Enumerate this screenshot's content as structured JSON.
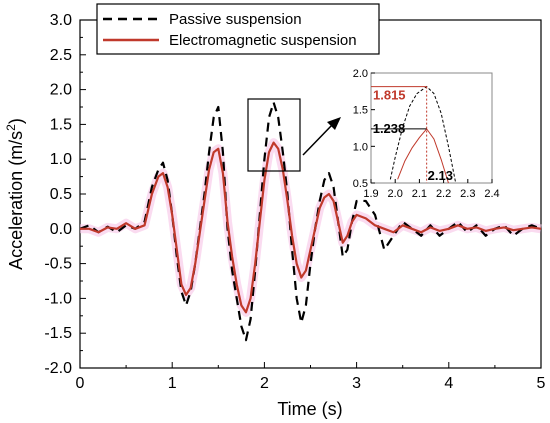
{
  "chart_data": {
    "type": "line",
    "xlabel": "Time (s)",
    "ylabel_main": "Acceleration (m/s",
    "ylabel_sup": "2",
    "ylabel_close": ")",
    "xlim": [
      0,
      5
    ],
    "ylim": [
      -2.0,
      3.0
    ],
    "x_ticks": [
      0,
      1,
      2,
      3,
      4,
      5
    ],
    "x_tick_labels": [
      "0",
      "1",
      "2",
      "3",
      "4",
      "5"
    ],
    "y_ticks": [
      -2.0,
      -1.5,
      -1.0,
      -0.5,
      0.0,
      0.5,
      1.0,
      1.5,
      2.0,
      2.5,
      3.0
    ],
    "y_tick_labels": [
      "-2.0",
      "-1.5",
      "-1.0",
      "-0.5",
      "0.0",
      "0.5",
      "1.0",
      "1.5",
      "2.0",
      "2.5",
      "3.0"
    ],
    "legend_position": "top",
    "series": [
      {
        "name": "Passive suspension",
        "color": "#000000",
        "style": "dashed",
        "x": [
          0.0,
          0.1,
          0.2,
          0.3,
          0.4,
          0.5,
          0.6,
          0.7,
          0.78,
          0.85,
          0.9,
          0.95,
          1.0,
          1.05,
          1.1,
          1.15,
          1.2,
          1.25,
          1.3,
          1.35,
          1.4,
          1.45,
          1.5,
          1.55,
          1.6,
          1.65,
          1.7,
          1.75,
          1.8,
          1.85,
          1.9,
          1.95,
          2.0,
          2.05,
          2.1,
          2.15,
          2.2,
          2.25,
          2.3,
          2.35,
          2.4,
          2.45,
          2.5,
          2.55,
          2.6,
          2.65,
          2.7,
          2.75,
          2.8,
          2.85,
          2.9,
          2.95,
          3.0,
          3.1,
          3.2,
          3.3,
          3.4,
          3.5,
          3.6,
          3.7,
          3.8,
          3.9,
          4.0,
          4.1,
          4.2,
          4.3,
          4.4,
          4.5,
          4.6,
          4.7,
          4.8,
          4.9,
          5.0
        ],
        "y": [
          0.0,
          0.05,
          -0.05,
          0.03,
          -0.05,
          0.05,
          0.0,
          0.1,
          0.6,
          0.85,
          0.95,
          0.7,
          0.2,
          -0.4,
          -0.9,
          -1.1,
          -0.9,
          -0.5,
          0.0,
          0.5,
          1.1,
          1.6,
          1.75,
          1.1,
          0.0,
          -0.6,
          -1.0,
          -1.4,
          -1.6,
          -1.3,
          -0.6,
          0.2,
          1.0,
          1.6,
          1.815,
          1.6,
          1.1,
          0.5,
          -0.3,
          -1.0,
          -1.35,
          -1.1,
          -0.5,
          0.0,
          0.4,
          0.7,
          0.8,
          0.6,
          0.1,
          -0.4,
          -0.3,
          0.1,
          0.4,
          0.4,
          0.2,
          -0.3,
          -0.1,
          0.1,
          0.0,
          -0.1,
          0.05,
          -0.1,
          0.0,
          0.1,
          -0.05,
          0.05,
          -0.1,
          0.0,
          0.05,
          -0.1,
          0.0,
          0.05,
          0.0
        ]
      },
      {
        "name": "Electromagnetic suspension",
        "color": "#c0392b",
        "style": "solid",
        "x": [
          0.0,
          0.1,
          0.2,
          0.3,
          0.4,
          0.5,
          0.6,
          0.7,
          0.78,
          0.85,
          0.9,
          0.95,
          1.0,
          1.05,
          1.1,
          1.15,
          1.2,
          1.25,
          1.3,
          1.35,
          1.4,
          1.45,
          1.5,
          1.55,
          1.6,
          1.65,
          1.7,
          1.75,
          1.8,
          1.85,
          1.9,
          1.95,
          2.0,
          2.05,
          2.1,
          2.15,
          2.2,
          2.25,
          2.3,
          2.35,
          2.4,
          2.45,
          2.5,
          2.55,
          2.6,
          2.65,
          2.7,
          2.75,
          2.8,
          2.85,
          2.9,
          2.95,
          3.0,
          3.1,
          3.2,
          3.3,
          3.4,
          3.5,
          3.6,
          3.7,
          3.8,
          3.9,
          4.0,
          4.1,
          4.2,
          4.3,
          4.4,
          4.5,
          4.6,
          4.7,
          4.8,
          4.9,
          5.0
        ],
        "y": [
          0.0,
          0.0,
          -0.05,
          0.02,
          0.0,
          0.08,
          0.0,
          0.05,
          0.5,
          0.75,
          0.8,
          0.6,
          0.2,
          -0.3,
          -0.8,
          -0.95,
          -0.85,
          -0.5,
          -0.05,
          0.4,
          0.85,
          1.1,
          1.15,
          0.8,
          0.1,
          -0.4,
          -0.8,
          -1.1,
          -1.2,
          -1.0,
          -0.5,
          0.1,
          0.7,
          1.1,
          1.238,
          1.15,
          0.85,
          0.4,
          -0.1,
          -0.5,
          -0.7,
          -0.6,
          -0.3,
          0.0,
          0.3,
          0.45,
          0.5,
          0.4,
          0.1,
          -0.2,
          -0.1,
          0.1,
          0.2,
          0.15,
          0.05,
          0.0,
          -0.05,
          0.05,
          0.0,
          -0.05,
          0.02,
          -0.03,
          0.0,
          0.05,
          0.0,
          0.02,
          -0.03,
          0.0,
          0.02,
          -0.02,
          0.0,
          0.02,
          0.0
        ]
      }
    ],
    "inset": {
      "xlim": [
        1.9,
        2.4
      ],
      "ylim": [
        0.5,
        2.0
      ],
      "x_ticks": [
        1.9,
        2.0,
        2.1,
        2.2,
        2.3,
        2.4
      ],
      "x_tick_labels": [
        "1.9",
        "2.0",
        "2.1",
        "2.2",
        "2.3",
        "2.4"
      ],
      "y_ticks": [
        0.5,
        1.0,
        1.5,
        2.0
      ],
      "y_tick_labels": [
        "0.5",
        "1.0",
        "1.5",
        "2.0"
      ],
      "peak_time": 2.13,
      "passive_peak": 1.815,
      "electro_peak": 1.238,
      "labels": {
        "passive_peak": "1.815",
        "electro_peak": "1.238",
        "peak_time": "2.13"
      },
      "passive": {
        "x": [
          1.98,
          2.0,
          2.03,
          2.06,
          2.09,
          2.13,
          2.16,
          2.19,
          2.22,
          2.25
        ],
        "y": [
          0.55,
          0.85,
          1.25,
          1.55,
          1.72,
          1.815,
          1.72,
          1.45,
          1.0,
          0.5
        ]
      },
      "electro": {
        "x": [
          2.01,
          2.04,
          2.07,
          2.1,
          2.13,
          2.16,
          2.19,
          2.22
        ],
        "y": [
          0.55,
          0.8,
          0.98,
          1.12,
          1.238,
          1.1,
          0.82,
          0.5
        ]
      }
    }
  }
}
